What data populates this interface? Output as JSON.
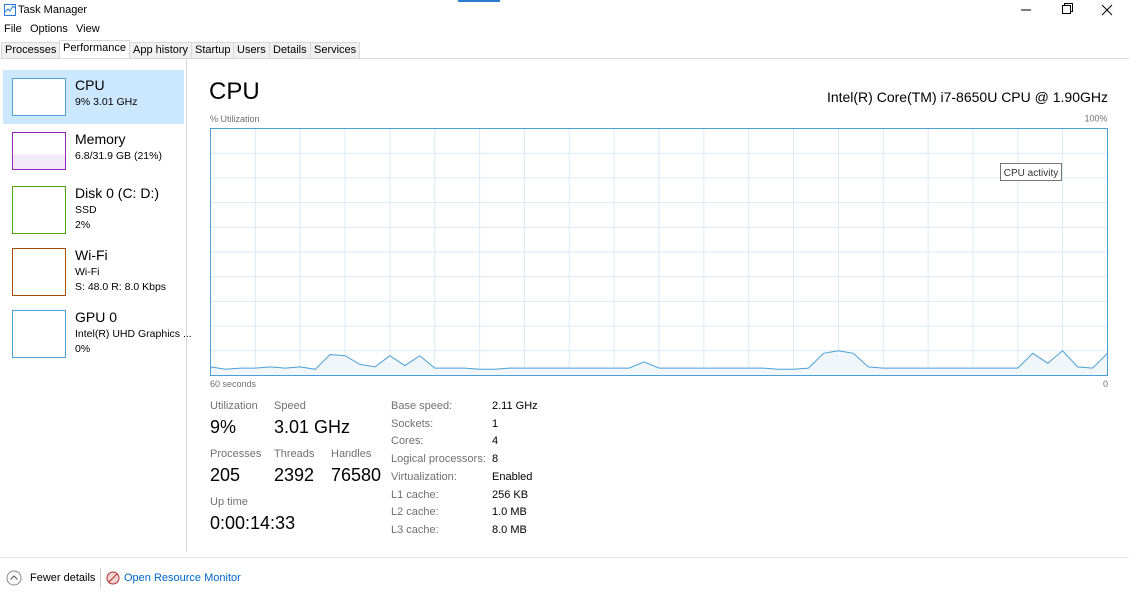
{
  "window": {
    "title": "Task Manager"
  },
  "menu": [
    "File",
    "Options",
    "View"
  ],
  "tabs": [
    "Processes",
    "Performance",
    "App history",
    "Startup",
    "Users",
    "Details",
    "Services"
  ],
  "sidebar": [
    {
      "name": "CPU",
      "lines": [
        "9%  3.01 GHz"
      ]
    },
    {
      "name": "Memory",
      "lines": [
        "6.8/31.9 GB (21%)"
      ]
    },
    {
      "name": "Disk 0 (C: D:)",
      "lines": [
        "SSD",
        "2%"
      ]
    },
    {
      "name": "Wi-Fi",
      "lines": [
        "Wi-Fi",
        "S: 48.0  R: 8.0 Kbps"
      ]
    },
    {
      "name": "GPU 0",
      "lines": [
        "Intel(R) UHD Graphics ...",
        "0%"
      ]
    }
  ],
  "main": {
    "title": "CPU",
    "model": "Intel(R) Core(TM) i7-8650U CPU @ 1.90GHz",
    "graph": {
      "type": "line",
      "y_label": "% Utilization",
      "x_label": "60 seconds",
      "x_end_label": "0",
      "ylim": [
        0,
        100
      ],
      "yticks": [
        {
          "value": 100,
          "label": "100%"
        }
      ],
      "tooltip": "CPU activity",
      "values": [
        3.5,
        2.5,
        3,
        3,
        3.5,
        3,
        3.5,
        2.5,
        8.5,
        8,
        4.5,
        3.5,
        8,
        4,
        8,
        3,
        3,
        3,
        2.5,
        2.5,
        3,
        3,
        3,
        3,
        3,
        3,
        3,
        3,
        3,
        5.5,
        3,
        3,
        3,
        3,
        3,
        3,
        3,
        3,
        2.5,
        2.5,
        3,
        9,
        10,
        9,
        3.5,
        3,
        3,
        3,
        3,
        3,
        3,
        3,
        3,
        3,
        3,
        9,
        5,
        10,
        3.5,
        3,
        9
      ]
    }
  },
  "stats": [
    {
      "label": "Utilization",
      "value": "9%"
    },
    {
      "label": "Speed",
      "value": "3.01 GHz"
    },
    {
      "label": "Processes",
      "value": "205"
    },
    {
      "label": "Threads",
      "value": "2392"
    },
    {
      "label": "Handles",
      "value": "76580"
    },
    {
      "label": "Up time",
      "value": "0:00:14:33"
    }
  ],
  "specs": [
    [
      "Base speed:",
      "2.11 GHz"
    ],
    [
      "Sockets:",
      "1"
    ],
    [
      "Cores:",
      "4"
    ],
    [
      "Logical processors:",
      "8"
    ],
    [
      "Virtualization:",
      "Enabled"
    ],
    [
      "L1 cache:",
      "256 KB"
    ],
    [
      "L2 cache:",
      "1.0 MB"
    ],
    [
      "L3 cache:",
      "8.0 MB"
    ]
  ],
  "footer": {
    "fewer": "Fewer details",
    "monitor": "Open Resource Monitor"
  }
}
